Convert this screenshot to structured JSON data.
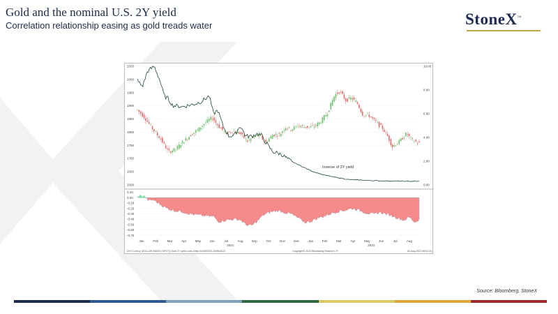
{
  "slide": {
    "title": "Gold and the nominal U.S. 2Y yield",
    "subtitle": "Correlation relationship easing as gold treads water",
    "logo": "StoneX",
    "logo_tm": "™",
    "source": "Source: Bloomberg, StoneX"
  },
  "colors": {
    "navy": "#1f2b52",
    "candle_up": "#6dbd6d",
    "candle_down": "#e36a6a",
    "inverse_line": "#1f4a2f",
    "corr_fill": "#f48a8a",
    "corr_positive": "#7be3a4",
    "bar_segments": [
      "#1f2b52",
      "#2f5b8e",
      "#7f9fbf",
      "#2f6b3f",
      "#d8c86a",
      "#d9a93a",
      "#9e2a2b"
    ]
  },
  "chart_data": [
    {
      "type": "line",
      "panel": "upper",
      "title": "",
      "left_axis": {
        "ticks": [
          "1600",
          "1650",
          "1700",
          "1750",
          "1800",
          "1850",
          "1900",
          "1950",
          "2000",
          "2050"
        ],
        "ylim": [
          1600,
          2050
        ]
      },
      "right_axis": {
        "ticks": [
          "0.00",
          "2.00",
          "4.00",
          "6.00",
          "8.00",
          "10.00"
        ],
        "ylim": [
          0,
          10
        ]
      },
      "annotation": "Inverse of 2Y yield",
      "series": [
        {
          "style": "candlestick",
          "axis": "left",
          "points": [
            [
              0.0,
              1885
            ],
            [
              0.026,
              1855
            ],
            [
              0.052,
              1815
            ],
            [
              0.085,
              1770
            ],
            [
              0.11,
              1725
            ],
            [
              0.135,
              1735
            ],
            [
              0.16,
              1762
            ],
            [
              0.19,
              1790
            ],
            [
              0.215,
              1810
            ],
            [
              0.24,
              1835
            ],
            [
              0.265,
              1855
            ],
            [
              0.29,
              1820
            ],
            [
              0.315,
              1795
            ],
            [
              0.34,
              1805
            ],
            [
              0.365,
              1795
            ],
            [
              0.39,
              1765
            ],
            [
              0.41,
              1780
            ],
            [
              0.43,
              1790
            ],
            [
              0.455,
              1760
            ],
            [
              0.48,
              1790
            ],
            [
              0.505,
              1790
            ],
            [
              0.525,
              1820
            ],
            [
              0.545,
              1810
            ],
            [
              0.57,
              1825
            ],
            [
              0.6,
              1820
            ],
            [
              0.625,
              1820
            ],
            [
              0.65,
              1840
            ],
            [
              0.675,
              1875
            ],
            [
              0.7,
              1940
            ],
            [
              0.718,
              1955
            ],
            [
              0.74,
              1920
            ],
            [
              0.76,
              1930
            ],
            [
              0.78,
              1910
            ],
            [
              0.8,
              1865
            ],
            [
              0.82,
              1865
            ],
            [
              0.845,
              1840
            ],
            [
              0.87,
              1815
            ],
            [
              0.89,
              1780
            ],
            [
              0.905,
              1745
            ],
            [
              0.93,
              1765
            ],
            [
              0.955,
              1795
            ],
            [
              0.975,
              1770
            ],
            [
              1.0,
              1758
            ]
          ]
        },
        {
          "style": "line",
          "name": "Inverse of 2Y yield",
          "axis": "right",
          "points": [
            [
              0.0,
              8.8
            ],
            [
              0.018,
              8.3
            ],
            [
              0.036,
              9.6
            ],
            [
              0.06,
              10.0
            ],
            [
              0.08,
              8.8
            ],
            [
              0.095,
              7.5
            ],
            [
              0.108,
              7.3
            ],
            [
              0.125,
              6.7
            ],
            [
              0.16,
              6.6
            ],
            [
              0.2,
              6.8
            ],
            [
              0.225,
              7.0
            ],
            [
              0.255,
              7.5
            ],
            [
              0.27,
              6.0
            ],
            [
              0.285,
              6.3
            ],
            [
              0.305,
              4.9
            ],
            [
              0.325,
              4.1
            ],
            [
              0.345,
              4.2
            ],
            [
              0.365,
              5.0
            ],
            [
              0.385,
              4.1
            ],
            [
              0.405,
              4.1
            ],
            [
              0.425,
              4.3
            ],
            [
              0.44,
              4.2
            ],
            [
              0.455,
              3.6
            ],
            [
              0.48,
              2.8
            ],
            [
              0.51,
              2.6
            ],
            [
              0.545,
              2.0
            ],
            [
              0.58,
              1.6
            ],
            [
              0.62,
              1.15
            ],
            [
              0.66,
              0.85
            ],
            [
              0.7,
              0.65
            ],
            [
              0.75,
              0.45
            ],
            [
              0.8,
              0.4
            ],
            [
              0.85,
              0.35
            ],
            [
              0.9,
              0.33
            ],
            [
              0.95,
              0.31
            ],
            [
              1.0,
              0.3
            ]
          ]
        }
      ]
    },
    {
      "type": "area",
      "panel": "lower",
      "y_ticks": [
        "0.10",
        "0.00",
        "-0.10",
        "-0.20",
        "-0.30",
        "-0.40",
        "-0.50",
        "-0.60",
        "-0.70"
      ],
      "ylim": [
        -0.72,
        0.12
      ],
      "x_ticks": [
        "Jan",
        "Feb",
        "Mar",
        "Apr",
        "May",
        "Jun",
        "Jul",
        "Aug",
        "Sep",
        "Oct",
        "Nov",
        "Dec",
        "Jan",
        "Feb",
        "Mar",
        "Apr",
        "May",
        "Jun",
        "Jul",
        "Aug"
      ],
      "years": [
        "2021",
        "2022"
      ],
      "series": [
        {
          "points": [
            [
              0.0,
              0.02
            ],
            [
              0.01,
              0.04
            ],
            [
              0.025,
              0.03
            ],
            [
              0.04,
              -0.06
            ],
            [
              0.055,
              -0.04
            ],
            [
              0.08,
              -0.12
            ],
            [
              0.105,
              -0.2
            ],
            [
              0.13,
              -0.24
            ],
            [
              0.16,
              -0.26
            ],
            [
              0.185,
              -0.3
            ],
            [
              0.21,
              -0.32
            ],
            [
              0.24,
              -0.34
            ],
            [
              0.27,
              -0.35
            ],
            [
              0.29,
              -0.45
            ],
            [
              0.31,
              -0.42
            ],
            [
              0.34,
              -0.4
            ],
            [
              0.365,
              -0.41
            ],
            [
              0.385,
              -0.5
            ],
            [
              0.405,
              -0.52
            ],
            [
              0.425,
              -0.44
            ],
            [
              0.445,
              -0.33
            ],
            [
              0.47,
              -0.27
            ],
            [
              0.5,
              -0.24
            ],
            [
              0.525,
              -0.28
            ],
            [
              0.545,
              -0.3
            ],
            [
              0.57,
              -0.38
            ],
            [
              0.595,
              -0.46
            ],
            [
              0.615,
              -0.44
            ],
            [
              0.64,
              -0.38
            ],
            [
              0.665,
              -0.34
            ],
            [
              0.69,
              -0.29
            ],
            [
              0.715,
              -0.25
            ],
            [
              0.74,
              -0.23
            ],
            [
              0.76,
              -0.2
            ],
            [
              0.78,
              -0.22
            ],
            [
              0.81,
              -0.28
            ],
            [
              0.84,
              -0.31
            ],
            [
              0.86,
              -0.27
            ],
            [
              0.88,
              -0.3
            ],
            [
              0.9,
              -0.33
            ],
            [
              0.92,
              -0.37
            ],
            [
              0.945,
              -0.42
            ],
            [
              0.965,
              -0.36
            ],
            [
              0.985,
              -0.46
            ],
            [
              1.0,
              -0.4
            ]
          ]
        }
      ]
    }
  ],
  "footnote": {
    "left": "DXY Curncy (DOLLAR INDEX (SPOT)) Gold 2Y yield corrs    Daily 01/08/2020-15/08/2022",
    "center": "Copyright© 2022 Bloomberg Finance L.P.",
    "right": "15-Aug-2022 08:02:23"
  }
}
